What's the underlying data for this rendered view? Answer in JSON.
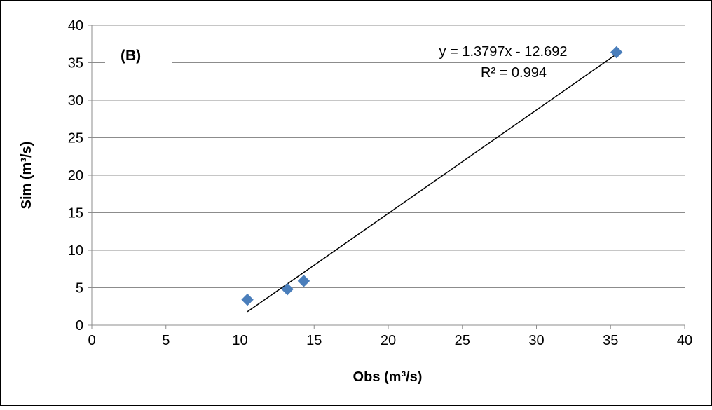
{
  "chart_data": {
    "type": "scatter",
    "panel_label": "(B)",
    "xlabel": "Obs (m³/s)",
    "ylabel": "Sim (m³/s)",
    "xlim": [
      0,
      40
    ],
    "ylim": [
      0,
      40
    ],
    "x_ticks": [
      0,
      5,
      10,
      15,
      20,
      25,
      30,
      35,
      40
    ],
    "y_ticks": [
      0,
      5,
      10,
      15,
      20,
      25,
      30,
      35,
      40
    ],
    "x_tick_labels": [
      "0",
      "5",
      "10",
      "15",
      "20",
      "25",
      "30",
      "35",
      "40"
    ],
    "y_tick_labels": [
      "0",
      "5",
      "10",
      "15",
      "20",
      "25",
      "30",
      "35",
      "40"
    ],
    "grid": "horizontal",
    "points": [
      {
        "x": 10.5,
        "y": 3.4
      },
      {
        "x": 13.2,
        "y": 4.8
      },
      {
        "x": 14.3,
        "y": 5.9
      },
      {
        "x": 35.4,
        "y": 36.4
      }
    ],
    "trendline": {
      "slope": 1.3797,
      "intercept": -12.692,
      "x_range": [
        10.5,
        35.4
      ],
      "equation": "y = 1.3797x - 12.692",
      "r_squared": "R² = 0.994"
    },
    "marker_color": "#4a7ebb",
    "line_color": "#000000",
    "grid_color": "#8c8c8c"
  }
}
